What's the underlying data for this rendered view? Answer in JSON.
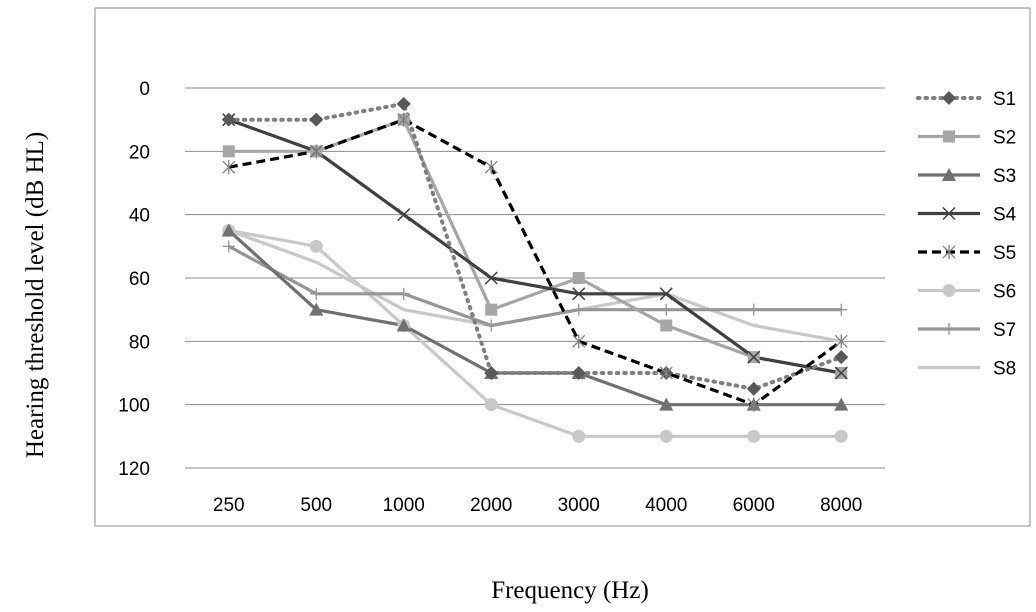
{
  "chart_data": {
    "type": "line",
    "categories": [
      "250",
      "500",
      "1000",
      "2000",
      "3000",
      "4000",
      "6000",
      "8000"
    ],
    "xlabel": "Frequency (Hz)",
    "ylabel": "Hearing threshold level (dB HL)",
    "ylim": [
      0,
      120
    ],
    "y_inverted": true,
    "yticks": [
      "0",
      "20",
      "40",
      "60",
      "80",
      "100",
      "120"
    ],
    "grid": "horizontal",
    "legend_position": "right",
    "series": [
      {
        "name": "S1",
        "values": [
          10,
          10,
          5,
          90,
          90,
          90,
          95,
          85
        ],
        "color": "#7f7f7f",
        "dash": "dotted",
        "marker": "diamond",
        "marker_color": "#595959"
      },
      {
        "name": "S2",
        "values": [
          20,
          20,
          10,
          70,
          60,
          75,
          85,
          90
        ],
        "color": "#a6a6a6",
        "dash": "solid",
        "marker": "square",
        "marker_color": "#a6a6a6"
      },
      {
        "name": "S3",
        "values": [
          45,
          70,
          75,
          90,
          90,
          100,
          100,
          100
        ],
        "color": "#707070",
        "dash": "solid",
        "marker": "triangle",
        "marker_color": "#707070"
      },
      {
        "name": "S4",
        "values": [
          10,
          20,
          40,
          60,
          65,
          65,
          85,
          90
        ],
        "color": "#404040",
        "dash": "solid",
        "marker": "x",
        "marker_color": "#404040"
      },
      {
        "name": "S5",
        "values": [
          25,
          20,
          10,
          25,
          80,
          90,
          100,
          80
        ],
        "color": "#000000",
        "dash": "dashed",
        "marker": "asterisk",
        "marker_color": "#7f7f7f"
      },
      {
        "name": "S6",
        "values": [
          45,
          50,
          75,
          100,
          110,
          110,
          110,
          110
        ],
        "color": "#c8c8c8",
        "dash": "solid",
        "marker": "circle",
        "marker_color": "#c8c8c8"
      },
      {
        "name": "S7",
        "values": [
          50,
          65,
          65,
          75,
          70,
          70,
          70,
          70
        ],
        "color": "#969696",
        "dash": "solid",
        "marker": "plus",
        "marker_color": "#969696"
      },
      {
        "name": "S8",
        "values": [
          45,
          55,
          70,
          75,
          70,
          65,
          75,
          80
        ],
        "color": "#c8c8c8",
        "dash": "solid",
        "marker": "none",
        "marker_color": "#c8c8c8"
      }
    ]
  }
}
